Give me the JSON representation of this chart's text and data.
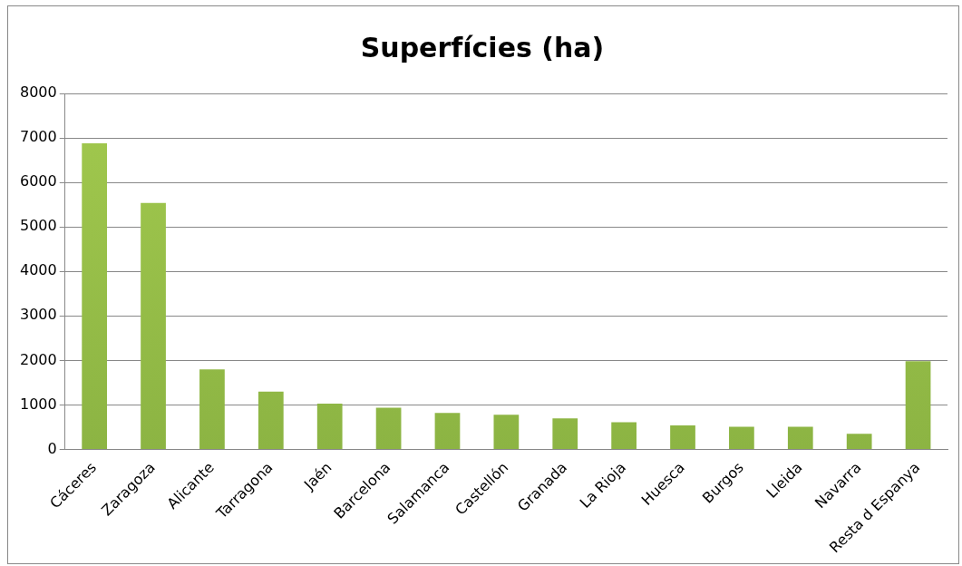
{
  "chart_data": {
    "type": "bar",
    "title": "Superfícies (ha)",
    "categories": [
      "Cáceres",
      "Zaragoza",
      "Alicante",
      "Tarragona",
      "Jaén",
      "Barcelona",
      "Salamanca",
      "Castellón",
      "Granada",
      "La Rioja",
      "Huesca",
      "Burgos",
      "Lleida",
      "Navarra",
      "Resta d Espanya"
    ],
    "values": [
      6880,
      5540,
      1800,
      1300,
      1030,
      940,
      820,
      780,
      700,
      610,
      540,
      510,
      510,
      350,
      1980
    ],
    "color": "#8cb443",
    "ylim": [
      0,
      8000
    ],
    "yticks": [
      0,
      1000,
      2000,
      3000,
      4000,
      5000,
      6000,
      7000,
      8000
    ],
    "grid": "y"
  }
}
